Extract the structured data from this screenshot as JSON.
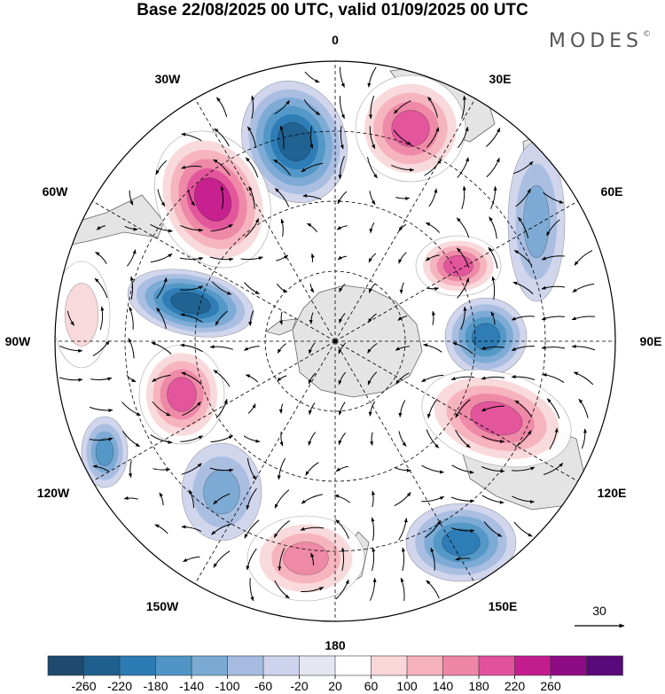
{
  "title": "Base 22/08/2025 00 UTC, valid 01/09/2025 00 UTC",
  "brand": "MODES",
  "brand_mark": "©",
  "longitude_labels": [
    "0",
    "30E",
    "60E",
    "90E",
    "120E",
    "150E",
    "180",
    "150W",
    "120W",
    "90W",
    "60W",
    "30W"
  ],
  "reference_vector": {
    "label": "30"
  },
  "colorbar": {
    "ticks": [
      "-260",
      "-220",
      "-180",
      "-140",
      "-100",
      "-60",
      "-20",
      "20",
      "60",
      "100",
      "140",
      "180",
      "220",
      "260"
    ],
    "colors": [
      "#1d4a6e",
      "#1f5f8e",
      "#2b7bb4",
      "#4f96c6",
      "#7aa9d4",
      "#a5bce0",
      "#cdd3ec",
      "#e6e6f3",
      "#ffffff",
      "#f9d7d9",
      "#f5b1bc",
      "#ee86a6",
      "#e2519b",
      "#c31c8e",
      "#8e0b86",
      "#590a7a"
    ]
  },
  "colors": {
    "land": "#e4e4e4",
    "coast": "#666666",
    "grid": "#000000"
  },
  "anomalies": [
    {
      "id": "blue-atlantic",
      "value": -240
    },
    {
      "id": "magenta-south-america",
      "value": 240
    },
    {
      "id": "pink-africa",
      "value": 200
    },
    {
      "id": "blue-indian-east",
      "value": -120
    },
    {
      "id": "pink-indian",
      "value": 180
    },
    {
      "id": "blue-indian",
      "value": -200
    },
    {
      "id": "pink-australia",
      "value": 180
    },
    {
      "id": "blue-tasman",
      "value": -200
    },
    {
      "id": "pink-pacific-south",
      "value": 160
    },
    {
      "id": "blue-pacific",
      "value": -100
    },
    {
      "id": "pink-bellingshausen",
      "value": 180
    },
    {
      "id": "blue-drake",
      "value": -240
    },
    {
      "id": "pink-east-pacific",
      "value": 80
    },
    {
      "id": "blue-far-pacific",
      "value": -140
    }
  ]
}
